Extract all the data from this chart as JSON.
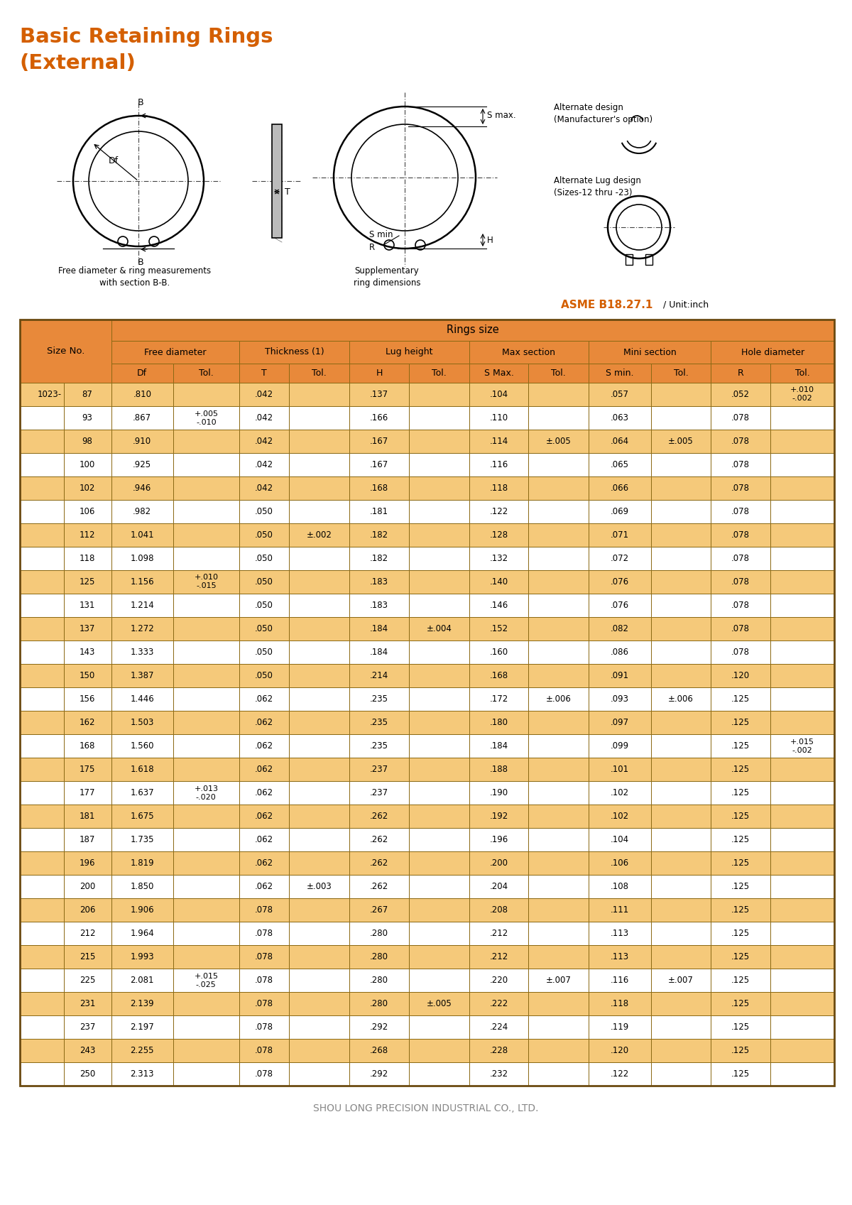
{
  "title_line1": "Basic Retaining Rings",
  "title_line2": "(External)",
  "title_color": "#D45F00",
  "asme_label": "ASME B18.27.1",
  "unit_label": " / Unit:inch",
  "footer": "SHOU LONG PRECISION INDUSTRIAL CO., LTD.",
  "header_bg": "#E8893A",
  "row_odd_bg": "#F5C97A",
  "row_even_bg": "#FFFFFF",
  "border_color": "#8B6914",
  "alternate_design_text": "Alternate design\n(Manufacturer's option)",
  "alternate_lug_text": "Alternate Lug design\n(Sizes-12 thru -23)",
  "size_prefix": "1023-",
  "rows": [
    [
      "87",
      ".810",
      "",
      ".042",
      "",
      ".137",
      "",
      ".104",
      "",
      ".057",
      "",
      ".052",
      "+.010;-.002"
    ],
    [
      "93",
      ".867",
      "+.005\n-.010",
      ".042",
      "",
      ".166",
      "",
      ".110",
      "",
      ".063",
      "",
      ".078",
      ""
    ],
    [
      "98",
      ".910",
      "",
      ".042",
      "",
      ".167",
      "",
      ".114",
      "±.005",
      ".064",
      "±.005",
      ".078",
      ""
    ],
    [
      "100",
      ".925",
      "",
      ".042",
      "",
      ".167",
      "",
      ".116",
      "",
      ".065",
      "",
      ".078",
      ""
    ],
    [
      "102",
      ".946",
      "",
      ".042",
      "",
      ".168",
      "",
      ".118",
      "",
      ".066",
      "",
      ".078",
      ""
    ],
    [
      "106",
      ".982",
      "",
      ".050",
      "",
      ".181",
      "",
      ".122",
      "",
      ".069",
      "",
      ".078",
      ""
    ],
    [
      "112",
      "1.041",
      "",
      ".050",
      "±.002",
      ".182",
      "",
      ".128",
      "",
      ".071",
      "",
      ".078",
      ""
    ],
    [
      "118",
      "1.098",
      "",
      ".050",
      "",
      ".182",
      "",
      ".132",
      "",
      ".072",
      "",
      ".078",
      ""
    ],
    [
      "125",
      "1.156",
      "+.010\n-.015",
      ".050",
      "",
      ".183",
      "",
      ".140",
      "",
      ".076",
      "",
      ".078",
      ""
    ],
    [
      "131",
      "1.214",
      "",
      ".050",
      "",
      ".183",
      "",
      ".146",
      "",
      ".076",
      "",
      ".078",
      ""
    ],
    [
      "137",
      "1.272",
      "",
      ".050",
      "",
      ".184",
      "±.004",
      ".152",
      "",
      ".082",
      "",
      ".078",
      ""
    ],
    [
      "143",
      "1.333",
      "",
      ".050",
      "",
      ".184",
      "",
      ".160",
      "",
      ".086",
      "",
      ".078",
      ""
    ],
    [
      "150",
      "1.387",
      "",
      ".050",
      "",
      ".214",
      "",
      ".168",
      "",
      ".091",
      "",
      ".120",
      ""
    ],
    [
      "156",
      "1.446",
      "",
      ".062",
      "",
      ".235",
      "",
      ".172",
      "±.006",
      ".093",
      "±.006",
      ".125",
      ""
    ],
    [
      "162",
      "1.503",
      "",
      ".062",
      "",
      ".235",
      "",
      ".180",
      "",
      ".097",
      "",
      ".125",
      ""
    ],
    [
      "168",
      "1.560",
      "",
      ".062",
      "",
      ".235",
      "",
      ".184",
      "",
      ".099",
      "",
      ".125",
      "+.015\n-.002"
    ],
    [
      "175",
      "1.618",
      "",
      ".062",
      "",
      ".237",
      "",
      ".188",
      "",
      ".101",
      "",
      ".125",
      ""
    ],
    [
      "177",
      "1.637",
      "+.013\n-.020",
      ".062",
      "",
      ".237",
      "",
      ".190",
      "",
      ".102",
      "",
      ".125",
      ""
    ],
    [
      "181",
      "1.675",
      "",
      ".062",
      "",
      ".262",
      "",
      ".192",
      "",
      ".102",
      "",
      ".125",
      ""
    ],
    [
      "187",
      "1.735",
      "",
      ".062",
      "",
      ".262",
      "",
      ".196",
      "",
      ".104",
      "",
      ".125",
      ""
    ],
    [
      "196",
      "1.819",
      "",
      ".062",
      "",
      ".262",
      "",
      ".200",
      "",
      ".106",
      "",
      ".125",
      ""
    ],
    [
      "200",
      "1.850",
      "",
      ".062",
      "±.003",
      ".262",
      "",
      ".204",
      "",
      ".108",
      "",
      ".125",
      ""
    ],
    [
      "206",
      "1.906",
      "",
      ".078",
      "",
      ".267",
      "",
      ".208",
      "",
      ".111",
      "",
      ".125",
      ""
    ],
    [
      "212",
      "1.964",
      "",
      ".078",
      "",
      ".280",
      "",
      ".212",
      "",
      ".113",
      "",
      ".125",
      ""
    ],
    [
      "215",
      "1.993",
      "",
      ".078",
      "",
      ".280",
      "",
      ".212",
      "",
      ".113",
      "",
      ".125",
      ""
    ],
    [
      "225",
      "2.081",
      "+.015\n-.025",
      ".078",
      "",
      ".280",
      "",
      ".220",
      "±.007",
      ".116",
      "±.007",
      ".125",
      ""
    ],
    [
      "231",
      "2.139",
      "",
      ".078",
      "",
      ".280",
      "±.005",
      ".222",
      "",
      ".118",
      "",
      ".125",
      ""
    ],
    [
      "237",
      "2.197",
      "",
      ".078",
      "",
      ".292",
      "",
      ".224",
      "",
      ".119",
      "",
      ".125",
      ""
    ],
    [
      "243",
      "2.255",
      "",
      ".078",
      "",
      ".268",
      "",
      ".228",
      "",
      ".120",
      "",
      ".125",
      ""
    ],
    [
      "250",
      "2.313",
      "",
      ".078",
      "",
      ".292",
      "",
      ".232",
      "",
      ".122",
      "",
      ".125",
      ""
    ]
  ]
}
